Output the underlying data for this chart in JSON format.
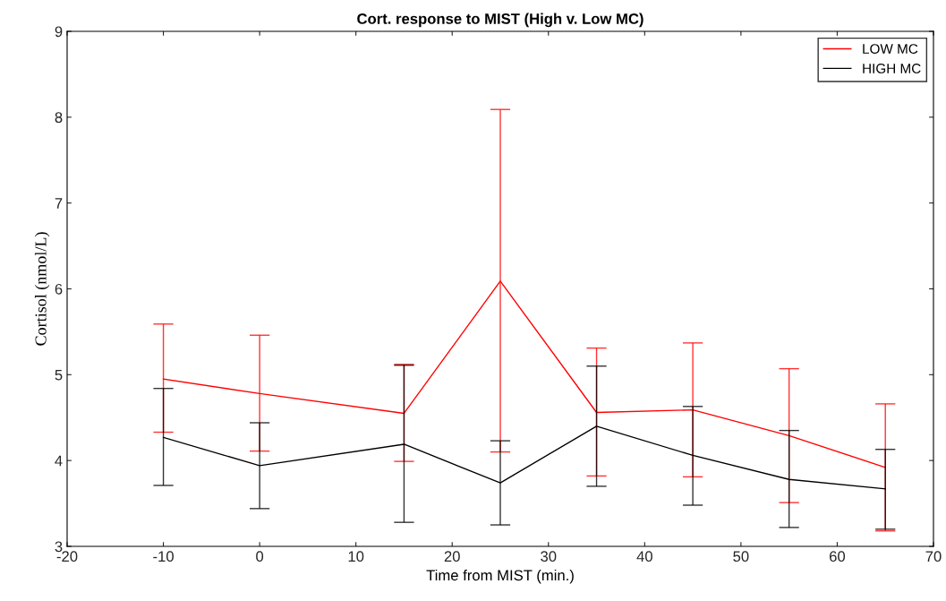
{
  "chart_data": {
    "type": "line",
    "title": "Cort. response to MIST (High v. Low MC)",
    "xlabel": "Time from MIST (min.)",
    "ylabel": "Cortisol (nmol/L)",
    "x": [
      -10,
      0,
      15,
      25,
      35,
      45,
      55,
      65
    ],
    "series": [
      {
        "name": "LOW MC",
        "color": "#ff0000",
        "values": [
          4.95,
          4.78,
          4.55,
          6.09,
          4.56,
          4.59,
          4.29,
          3.92
        ],
        "errors": [
          [
            4.33,
            5.59
          ],
          [
            4.11,
            5.46
          ],
          [
            3.99,
            5.12
          ],
          [
            4.1,
            8.09
          ],
          [
            3.82,
            5.31
          ],
          [
            3.81,
            5.37
          ],
          [
            3.51,
            5.07
          ],
          [
            3.18,
            4.66
          ]
        ]
      },
      {
        "name": "HIGH MC",
        "color": "#000000",
        "values": [
          4.27,
          3.94,
          4.19,
          3.74,
          4.4,
          4.06,
          3.78,
          3.67
        ],
        "errors": [
          [
            3.71,
            4.84
          ],
          [
            3.44,
            4.44
          ],
          [
            3.28,
            5.11
          ],
          [
            3.25,
            4.23
          ],
          [
            3.7,
            5.1
          ],
          [
            3.48,
            4.63
          ],
          [
            3.22,
            4.35
          ],
          [
            3.2,
            4.13
          ]
        ]
      }
    ],
    "xlim": [
      -20,
      70
    ],
    "xticks": [
      -20,
      -10,
      0,
      10,
      20,
      30,
      40,
      50,
      60,
      70
    ],
    "ylim": [
      3,
      9
    ],
    "yticks": [
      3,
      4,
      5,
      6,
      7,
      8,
      9
    ],
    "legend": "top right",
    "grid": false
  }
}
